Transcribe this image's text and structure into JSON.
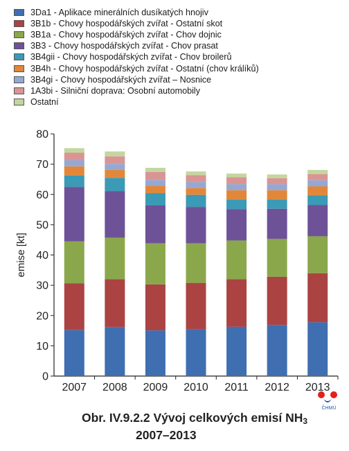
{
  "chart_data": {
    "type": "bar",
    "stacked": true,
    "categories": [
      "2007",
      "2008",
      "2009",
      "2010",
      "2011",
      "2012",
      "2013"
    ],
    "ylabel": "emise  [kt]",
    "ylim": [
      0,
      80
    ],
    "yticks": [
      0,
      10,
      20,
      30,
      40,
      50,
      60,
      70,
      80
    ],
    "grid": false,
    "legend_position": "top-left",
    "series": [
      {
        "name": "3Da1 - Aplikace minerálních dusíkatých hnojiv",
        "color": "#3f6fb0",
        "values": [
          15.2,
          16.2,
          15.1,
          15.5,
          16.3,
          16.9,
          17.8
        ]
      },
      {
        "name": "3B1b - Chovy hospodářských zvířat - Ostatní skot",
        "color": "#ab4343",
        "values": [
          15.4,
          15.8,
          15.2,
          15.3,
          15.7,
          15.9,
          16.2
        ]
      },
      {
        "name": "3B1a - Chovy hospodářských zvířat - Chov dojnic",
        "color": "#8aa84b",
        "values": [
          13.9,
          13.7,
          13.6,
          13.1,
          12.8,
          12.5,
          12.2
        ]
      },
      {
        "name": "3B3 - Chovy hospodářských zvířat - Chov prasat",
        "color": "#6e5298",
        "values": [
          18.0,
          15.4,
          12.5,
          12.0,
          10.4,
          10.0,
          10.3
        ]
      },
      {
        "name": "3B4gii - Chovy hospodářských zvířat - Chov broilerů",
        "color": "#3b9ab5",
        "values": [
          3.8,
          4.4,
          4.0,
          4.0,
          3.2,
          3.1,
          3.2
        ]
      },
      {
        "name": "3B4h - Chovy hospodářských zvířat - Ostatní (chov králíků)",
        "color": "#e2873a",
        "values": [
          3.0,
          2.6,
          2.4,
          2.2,
          3.0,
          3.0,
          3.0
        ]
      },
      {
        "name": "3B4gi - Chovy hospodářských zvířat – Nosnice",
        "color": "#95a8d3",
        "values": [
          2.0,
          2.0,
          2.0,
          2.0,
          2.0,
          2.0,
          2.0
        ]
      },
      {
        "name": "1A3bi - Silniční doprava: Osobní automobily",
        "color": "#d99594",
        "values": [
          2.5,
          2.5,
          2.6,
          2.3,
          2.3,
          2.0,
          2.0
        ]
      },
      {
        "name": "Ostatní",
        "color": "#c3d6a0",
        "values": [
          1.5,
          1.6,
          1.4,
          1.2,
          1.2,
          1.2,
          1.4
        ]
      }
    ]
  },
  "caption": {
    "line1": "Obr. IV.9.2.2  Vývoj celkových emisí NH",
    "sub": "3",
    "line2": "2007–2013"
  },
  "logo": {
    "text": "ČHMÚ",
    "color_red": "#e2231a",
    "color_blue": "#1e5aa8"
  }
}
